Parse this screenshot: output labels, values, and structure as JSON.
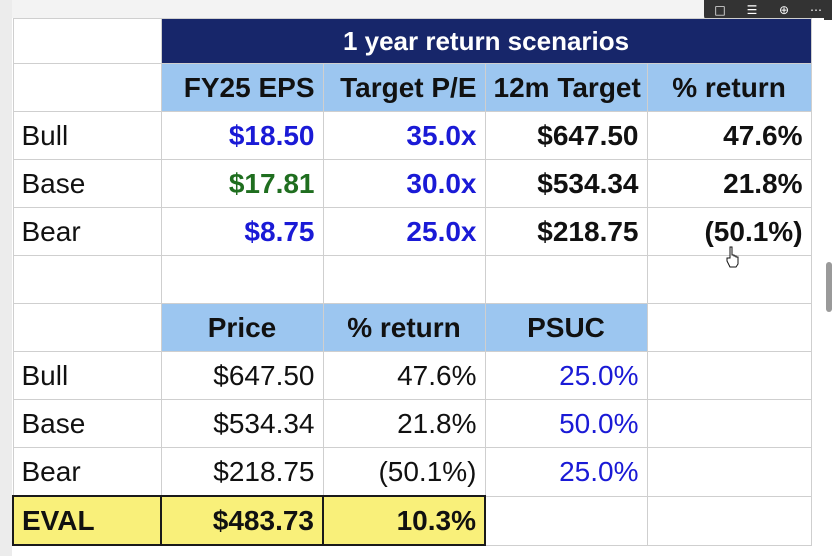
{
  "top_table": {
    "title": "1 year return scenarios",
    "headers": [
      "FY25 EPS",
      "Target P/E",
      "12m Target",
      "% return"
    ],
    "rows": [
      {
        "label": "Bull",
        "eps": "$18.50",
        "pe": "35.0x",
        "target": "$647.50",
        "ret": "47.6%"
      },
      {
        "label": "Base",
        "eps": "$17.81",
        "pe": "30.0x",
        "target": "$534.34",
        "ret": "21.8%"
      },
      {
        "label": "Bear",
        "eps": "$8.75",
        "pe": "25.0x",
        "target": "$218.75",
        "ret": "(50.1%)"
      }
    ]
  },
  "bottom_table": {
    "headers": [
      "Price",
      "% return",
      "PSUC"
    ],
    "rows": [
      {
        "label": "Bull",
        "price": "$647.50",
        "ret": "47.6%",
        "psuc": "25.0%"
      },
      {
        "label": "Base",
        "price": "$534.34",
        "ret": "21.8%",
        "psuc": "50.0%"
      },
      {
        "label": "Bear",
        "price": "$218.75",
        "ret": "(50.1%)",
        "psuc": "25.0%"
      }
    ],
    "eval": {
      "label": "EVAL",
      "price": "$483.73",
      "ret": "10.3%"
    }
  },
  "toolbar": {
    "icons": [
      "comment-icon",
      "notes-icon",
      "download-icon",
      "more-icon"
    ]
  },
  "colors": {
    "title_bg": "#17266a",
    "header_bg": "#9cc6f0",
    "input_blue": "#1a1ad6",
    "input_green": "#1f6e1f",
    "eval_bg": "#f9f07a"
  }
}
